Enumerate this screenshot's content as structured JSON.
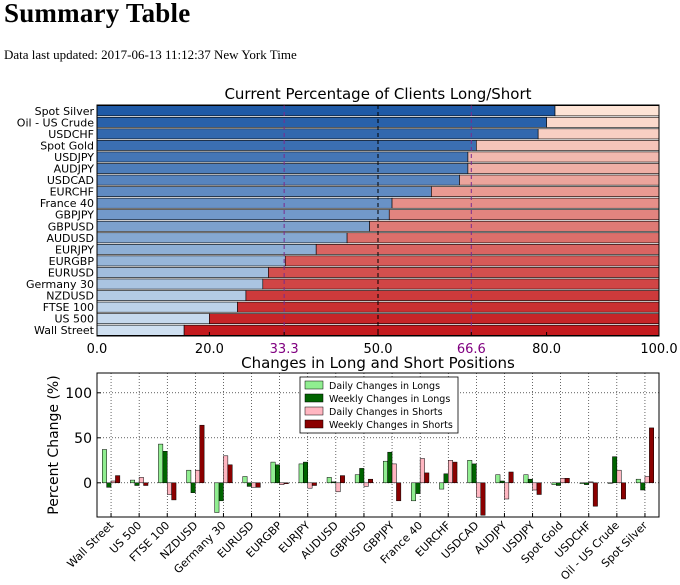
{
  "page": {
    "title": "Summary Table",
    "updated_prefix": "Data last updated:",
    "updated_value": "2017-06-13 11:12:37 New York Time"
  },
  "chart_data": [
    {
      "type": "bar",
      "orientation": "horizontal",
      "stacked": true,
      "title": "Current Percentage of Clients Long/Short",
      "categories": [
        "Spot Silver",
        "Oil - US Crude",
        "USDCHF",
        "Spot Gold",
        "USDJPY",
        "AUDJPY",
        "USDCAD",
        "EURCHF",
        "France 40",
        "GBPJPY",
        "GBPUSD",
        "AUDUSD",
        "EURJPY",
        "EURGBP",
        "EURUSD",
        "Germany 30",
        "NZDUSD",
        "FTSE 100",
        "US 500",
        "Wall Street"
      ],
      "series": [
        {
          "values": [
            81.5,
            80.0,
            78.5,
            67.5,
            66.0,
            66.0,
            64.5,
            59.5,
            52.5,
            52.0,
            48.5,
            44.5,
            39.0,
            33.5,
            30.5,
            29.5,
            26.5,
            25.0,
            20.0,
            15.5
          ]
        },
        {
          "values": [
            18.5,
            20.0,
            21.5,
            32.5,
            34.0,
            34.0,
            35.5,
            40.5,
            47.5,
            48.0,
            51.5,
            55.5,
            61.0,
            66.5,
            69.5,
            70.5,
            73.5,
            75.0,
            80.0,
            84.5
          ]
        }
      ],
      "xlim": [
        0,
        100
      ],
      "xticks": [
        "0.0",
        "20.0",
        "50.0",
        "80.0",
        "100.0"
      ],
      "xticks_values": [
        0,
        20,
        50,
        80,
        100
      ],
      "special_ticks": [
        "33.3",
        "66.6"
      ],
      "special_ticks_values": [
        33.3,
        66.6
      ],
      "reference_lines": [
        33.3,
        50,
        66.6
      ],
      "colors": {
        "long_dark": "#1f5aa6",
        "long_light": "#cfe0f1",
        "short_light": "#fee4d6",
        "short_dark": "#c41a1e",
        "ref_purple": "#7b2b8f",
        "ref_black": "#000000",
        "special_tick_text": "#800080"
      }
    },
    {
      "type": "bar",
      "title": "Changes in Long and Short Positions",
      "ylabel": "Percent Change (%)",
      "ylim": [
        -38,
        122
      ],
      "yticks": [
        "0",
        "50",
        "100"
      ],
      "yticks_values": [
        0,
        50,
        100
      ],
      "categories": [
        "Wall Street",
        "US 500",
        "FTSE 100",
        "NZDUSD",
        "Germany 30",
        "EURUSD",
        "EURGBP",
        "EURJPY",
        "AUDUSD",
        "GBPUSD",
        "GBPJPY",
        "France 40",
        "EURCHF",
        "USDCAD",
        "AUDJPY",
        "USDJPY",
        "Spot Gold",
        "USDCHF",
        "Oil - US Crude",
        "Spot Silver"
      ],
      "series": [
        {
          "name": "Daily Changes in Longs",
          "color": "#90ee90",
          "values": [
            37,
            3,
            43,
            14,
            -33,
            7,
            23,
            21,
            6,
            9,
            24,
            -20,
            -7,
            25,
            9,
            9,
            -2,
            -1,
            0,
            4
          ]
        },
        {
          "name": "Weekly Changes in Longs",
          "color": "#006400",
          "values": [
            -5,
            -3,
            35,
            -11,
            -20,
            -4,
            20,
            23,
            1,
            16,
            34,
            -12,
            10,
            21,
            2,
            4,
            -3,
            -2,
            29,
            -8
          ]
        },
        {
          "name": "Daily Changes in Shorts",
          "color": "#ffb6c1",
          "values": [
            2,
            6,
            -13,
            14,
            30,
            -5,
            -2,
            -6,
            -10,
            -4,
            21,
            27,
            25,
            -16,
            -18,
            -8,
            5,
            1,
            14,
            7
          ]
        },
        {
          "name": "Weekly Changes in Shorts",
          "color": "#8b0000",
          "values": [
            8,
            -3,
            -19,
            64,
            20,
            -5,
            -1,
            -3,
            8,
            4,
            -20,
            11,
            23,
            -36,
            12,
            -13,
            5,
            -26,
            -18,
            61
          ]
        }
      ]
    }
  ]
}
